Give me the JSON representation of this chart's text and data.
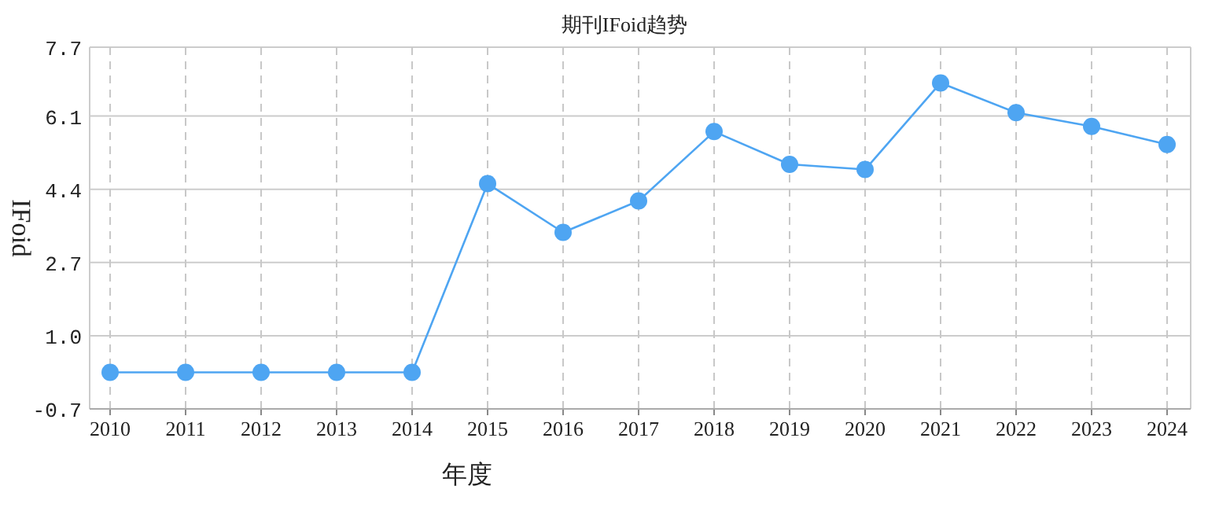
{
  "chart_data": {
    "type": "line",
    "title": "期刊IFoid趋势",
    "xlabel": "年度",
    "ylabel": "IFoid",
    "categories": [
      "2010",
      "2011",
      "2012",
      "2013",
      "2014",
      "2015",
      "2016",
      "2017",
      "2018",
      "2019",
      "2020",
      "2021",
      "2022",
      "2023",
      "2024"
    ],
    "series": [
      {
        "color": "#4ea5f2",
        "values": [
          0.15,
          0.15,
          0.15,
          0.15,
          0.15,
          4.53,
          3.4,
          4.13,
          5.74,
          4.98,
          4.86,
          6.87,
          6.18,
          5.86,
          5.44
        ]
      }
    ],
    "ylim": [
      -0.7,
      7.7
    ],
    "yticks": [
      -0.7,
      {
        "value": 1.0,
        "label": "1.0"
      },
      2.7,
      4.4,
      6.1,
      7.7
    ],
    "grid": true,
    "marker": "circle",
    "line_style": "solid"
  }
}
